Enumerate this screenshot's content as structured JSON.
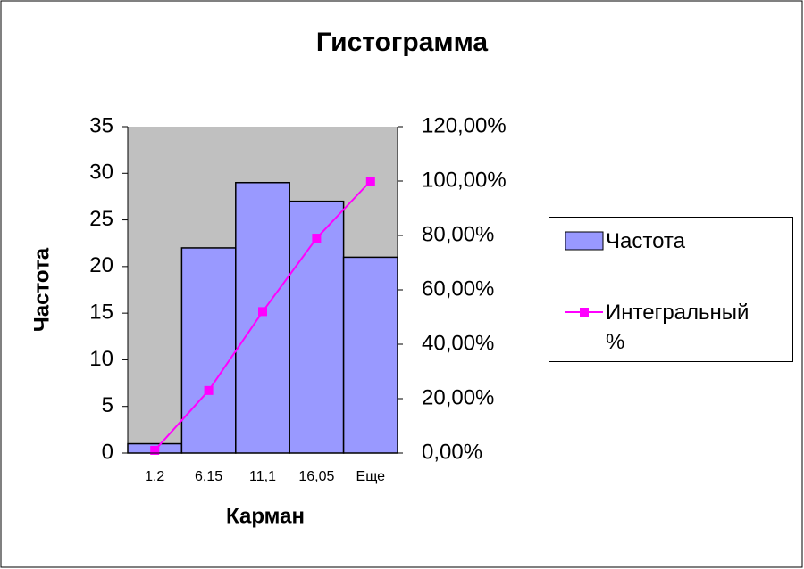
{
  "chart_data": {
    "type": "bar",
    "title": "Гистограмма",
    "x_label": "Карман",
    "y_label": "Частота",
    "categories": [
      "1,2",
      "6,15",
      "11,1",
      "16,05",
      "Еще"
    ],
    "series": [
      {
        "name": "Частота",
        "type": "bar",
        "color": "#9999ff",
        "values": [
          1,
          22,
          29,
          27,
          21
        ]
      },
      {
        "name": "Интегральный %",
        "type": "line",
        "color": "#ff00ff",
        "axis": "y2",
        "values": [
          1,
          23,
          52,
          79,
          100
        ]
      }
    ],
    "ylim": [
      0,
      35
    ],
    "yticks": [
      0,
      5,
      10,
      15,
      20,
      25,
      30,
      35
    ],
    "y2lim": [
      0,
      120
    ],
    "y2ticks": [
      {
        "value": 0,
        "label": "0,00%"
      },
      {
        "value": 20,
        "label": "20,00%"
      },
      {
        "value": 40,
        "label": "40,00%"
      },
      {
        "value": 60,
        "label": "60,00%"
      },
      {
        "value": 80,
        "label": "80,00%"
      },
      {
        "value": 100,
        "label": "100,00%"
      },
      {
        "value": 120,
        "label": "120,00%"
      }
    ],
    "plot_background": "#c0c0c0",
    "grid": false,
    "legend": "right"
  }
}
